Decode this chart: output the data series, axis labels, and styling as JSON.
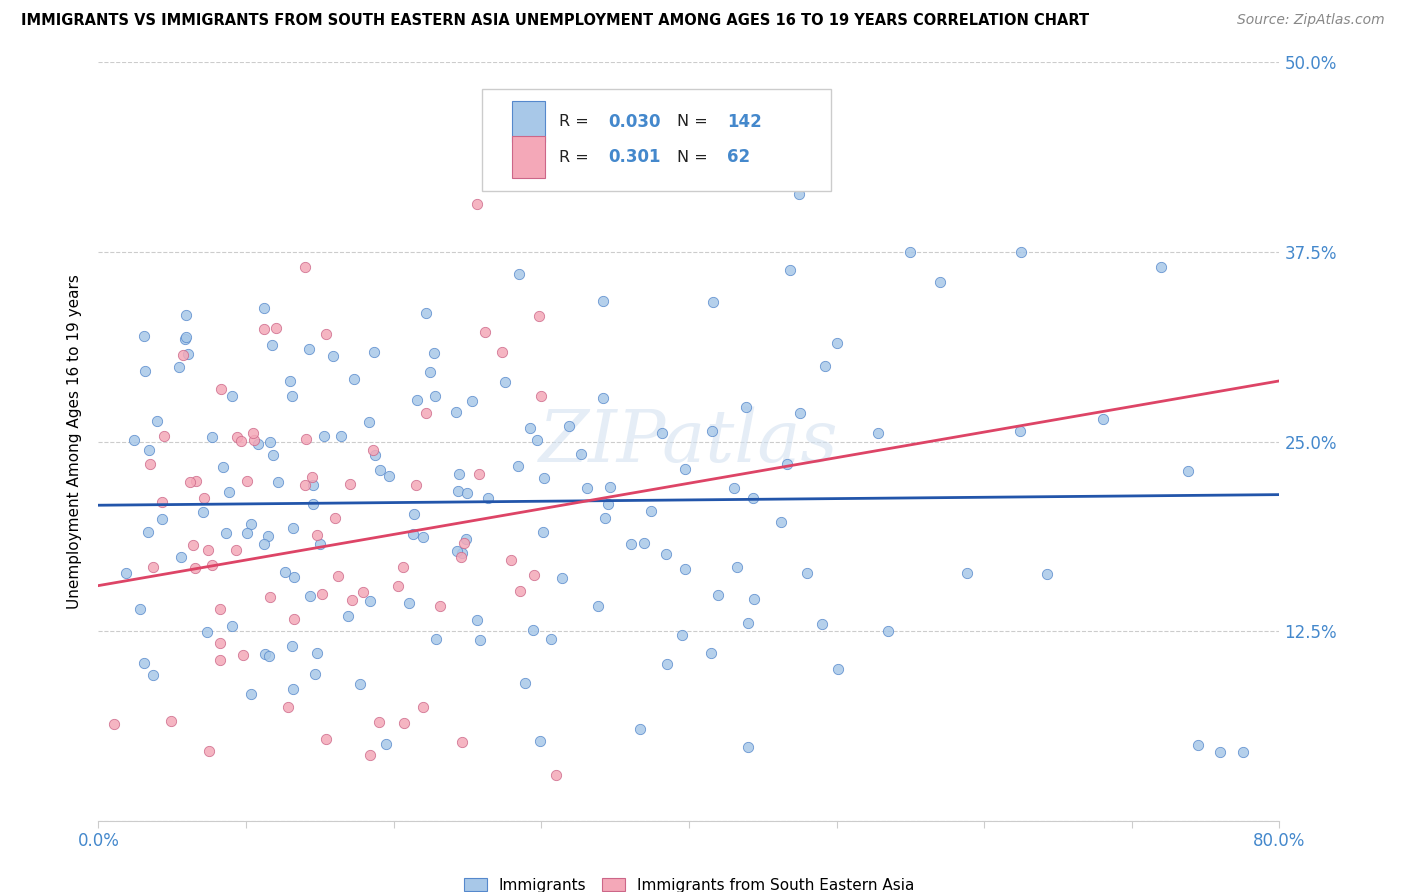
{
  "title": "IMMIGRANTS VS IMMIGRANTS FROM SOUTH EASTERN ASIA UNEMPLOYMENT AMONG AGES 16 TO 19 YEARS CORRELATION CHART",
  "source": "Source: ZipAtlas.com",
  "ylabel": "Unemployment Among Ages 16 to 19 years",
  "xlim": [
    0.0,
    0.8
  ],
  "ylim": [
    0.0,
    0.5
  ],
  "xtick_positions": [
    0.0,
    0.1,
    0.2,
    0.3,
    0.4,
    0.5,
    0.6,
    0.7,
    0.8
  ],
  "xticklabels": [
    "0.0%",
    "",
    "",
    "",
    "",
    "",
    "",
    "",
    "80.0%"
  ],
  "ytick_positions": [
    0.0,
    0.125,
    0.25,
    0.375,
    0.5
  ],
  "yticklabels_right": [
    "",
    "12.5%",
    "25.0%",
    "37.5%",
    "50.0%"
  ],
  "R1": 0.03,
  "N1": 142,
  "R2": 0.301,
  "N2": 62,
  "color1": "#a8c8e8",
  "color2": "#f4a8b8",
  "edge_color1": "#5588cc",
  "edge_color2": "#cc6688",
  "line_color1": "#2255aa",
  "line_color2": "#dd4466",
  "tick_color": "#4488cc",
  "grid_color": "#cccccc",
  "watermark_text": "ZIPatlas",
  "legend_label1": "Immigrants",
  "legend_label2": "Immigrants from South Eastern Asia",
  "trend1_x": [
    0.0,
    0.8
  ],
  "trend1_y": [
    0.208,
    0.215
  ],
  "trend2_x": [
    0.0,
    0.8
  ],
  "trend2_y": [
    0.155,
    0.29
  ]
}
